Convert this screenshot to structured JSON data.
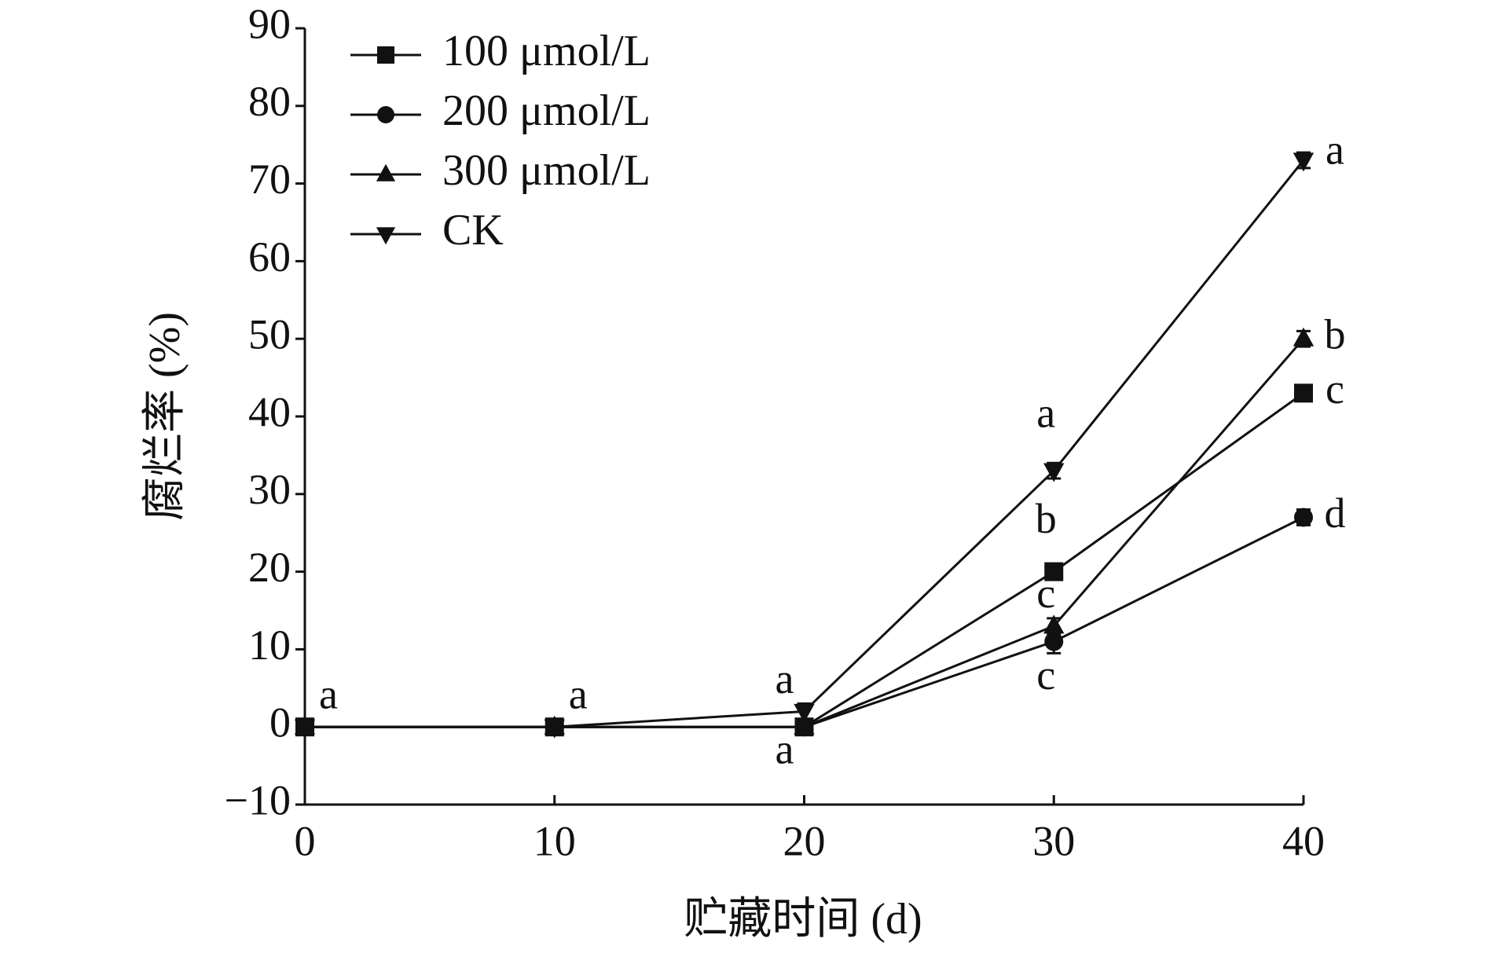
{
  "chart_data": {
    "type": "line",
    "x_label": "贮藏时间 (d)",
    "y_label": "腐烂率 (%)",
    "x": [
      0,
      10,
      20,
      30,
      40
    ],
    "xlim": [
      0,
      40
    ],
    "xticks": [
      0,
      10,
      20,
      30,
      40
    ],
    "ylim": [
      -10,
      90
    ],
    "yticks": [
      {
        "value": -10,
        "label": "−10"
      },
      0,
      10,
      20,
      30,
      40,
      50,
      60,
      70,
      80,
      90
    ],
    "legend": "upper left",
    "series": [
      {
        "name": "100 μmol/L",
        "color": "#111111",
        "marker": "square",
        "values": [
          0,
          0,
          0,
          20,
          43
        ],
        "errors": [
          1,
          1,
          1,
          1,
          1
        ],
        "letters": [
          null,
          null,
          null,
          "b",
          "c"
        ]
      },
      {
        "name": "200 μmol/L",
        "color": "#111111",
        "marker": "circle",
        "values": [
          0,
          0,
          0,
          11,
          27
        ],
        "errors": [
          1,
          1,
          1,
          1.5,
          1
        ],
        "letters": [
          null,
          null,
          "a",
          "c",
          "d"
        ]
      },
      {
        "name": "300 μmol/L",
        "color": "#111111",
        "marker": "triangle-up",
        "values": [
          0,
          0,
          0,
          13,
          50
        ],
        "errors": [
          1,
          1,
          1,
          1,
          1
        ],
        "letters": [
          null,
          null,
          null,
          "c",
          "b"
        ]
      },
      {
        "name": "CK",
        "color": "#111111",
        "marker": "triangle-down",
        "values": [
          0,
          0,
          2,
          33,
          73
        ],
        "errors": [
          1,
          1,
          1,
          1,
          1
        ],
        "letters": [
          "a",
          "a",
          "a",
          "a",
          "a"
        ]
      }
    ]
  }
}
